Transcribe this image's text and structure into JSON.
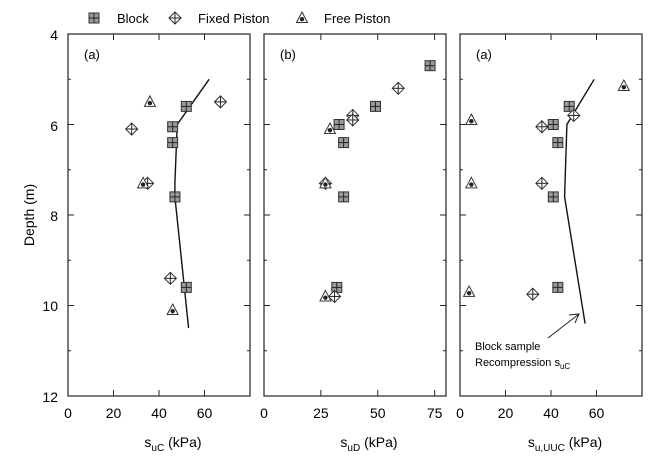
{
  "legend": {
    "position": "top",
    "items": [
      {
        "name": "Block",
        "marker": "square-plus"
      },
      {
        "name": "Fixed Piston",
        "marker": "diamond-plus"
      },
      {
        "name": "Free Piston",
        "marker": "triangle-dot"
      }
    ]
  },
  "y_axis_title": "Depth (m)",
  "y_ticks": [
    "4",
    "6",
    "8",
    "10",
    "12"
  ],
  "annotation": {
    "line1": "Block sample",
    "line2_main": "Recompression s",
    "line2_sub": "uC"
  },
  "chart_data": [
    {
      "type": "scatter",
      "panel_label": "(a)",
      "xlabel": {
        "main": "s",
        "sub": "uC",
        "unit": " (kPa)"
      },
      "xlim": [
        0,
        80
      ],
      "ylim": [
        12,
        4
      ],
      "x_ticks": [
        "0",
        "20",
        "40",
        "60"
      ],
      "x_tick_values": [
        0,
        20,
        40,
        60
      ],
      "grid": false,
      "series": [
        {
          "name": "Block",
          "points": [
            [
              52,
              5.6
            ],
            [
              46,
              6.05
            ],
            [
              46,
              6.4
            ],
            [
              47,
              7.6
            ],
            [
              52,
              9.6
            ]
          ]
        },
        {
          "name": "Fixed Piston",
          "points": [
            [
              67,
              5.5
            ],
            [
              28,
              6.1
            ],
            [
              35,
              7.3
            ],
            [
              45,
              9.4
            ]
          ]
        },
        {
          "name": "Free Piston",
          "points": [
            [
              36,
              5.5
            ],
            [
              33,
              7.3
            ],
            [
              46,
              10.1
            ]
          ]
        }
      ],
      "line": {
        "name": "Block sample Recompression suC",
        "points": [
          [
            62,
            5.0
          ],
          [
            48,
            6.0
          ],
          [
            47,
            7.3
          ],
          [
            47,
            7.6
          ],
          [
            53,
            10.5
          ]
        ]
      }
    },
    {
      "type": "scatter",
      "panel_label": "(b)",
      "xlabel": {
        "main": "s",
        "sub": "uD",
        "unit": " (kPa)"
      },
      "xlim": [
        0,
        80
      ],
      "ylim": [
        12,
        4
      ],
      "x_ticks": [
        "0",
        "25",
        "50",
        "75"
      ],
      "x_tick_values": [
        0,
        25,
        50,
        75
      ],
      "grid": false,
      "series": [
        {
          "name": "Block",
          "points": [
            [
              73,
              4.7
            ],
            [
              49,
              5.6
            ],
            [
              33,
              6.0
            ],
            [
              35,
              6.4
            ],
            [
              35,
              7.6
            ],
            [
              32,
              9.6
            ]
          ]
        },
        {
          "name": "Fixed Piston",
          "points": [
            [
              59,
              5.2
            ],
            [
              39,
              5.8
            ],
            [
              39,
              5.9
            ],
            [
              27,
              7.3
            ],
            [
              31,
              9.8
            ]
          ]
        },
        {
          "name": "Free Piston",
          "points": [
            [
              29,
              6.1
            ],
            [
              27,
              7.3
            ],
            [
              27,
              9.8
            ]
          ]
        }
      ]
    },
    {
      "type": "scatter",
      "panel_label": "(a)",
      "xlabel": {
        "main": "s",
        "sub": "u,UUC",
        "unit": " (kPa)"
      },
      "xlim": [
        0,
        80
      ],
      "ylim": [
        12,
        4
      ],
      "x_ticks": [
        "0",
        "20",
        "40",
        "60"
      ],
      "x_tick_values": [
        0,
        20,
        40,
        60
      ],
      "grid": false,
      "series": [
        {
          "name": "Block",
          "points": [
            [
              48,
              5.6
            ],
            [
              41,
              6.0
            ],
            [
              43,
              6.4
            ],
            [
              41,
              7.6
            ],
            [
              43,
              9.6
            ]
          ]
        },
        {
          "name": "Fixed Piston",
          "points": [
            [
              50,
              5.8
            ],
            [
              36,
              6.05
            ],
            [
              36,
              7.3
            ],
            [
              32,
              9.75
            ]
          ]
        },
        {
          "name": "Free Piston",
          "points": [
            [
              72,
              5.15
            ],
            [
              5,
              5.9
            ],
            [
              5,
              7.3
            ],
            [
              4,
              9.7
            ]
          ]
        }
      ],
      "line": {
        "name": "Block sample Recompression suC",
        "points": [
          [
            59,
            5.0
          ],
          [
            47,
            6.0
          ],
          [
            46,
            7.6
          ],
          [
            55,
            10.4
          ]
        ]
      }
    }
  ]
}
